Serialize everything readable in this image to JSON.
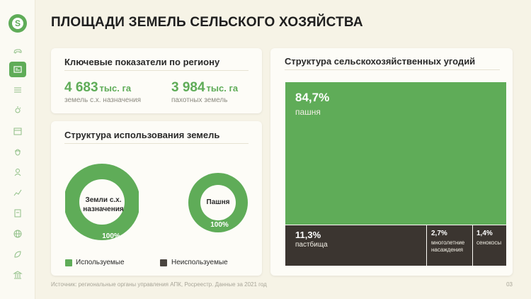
{
  "title": "ПЛОЩАДИ ЗЕМЕЛЬ СЕЛЬСКОГО ХОЗЯЙСТВА",
  "logo_letter": "S",
  "sidebar": {
    "items": [
      {
        "icon": "cow-icon"
      },
      {
        "icon": "field-card-icon",
        "active": true
      },
      {
        "icon": "wheat-field-icon"
      },
      {
        "icon": "weather-icon"
      },
      {
        "icon": "calendar-icon"
      },
      {
        "icon": "bug-icon"
      },
      {
        "icon": "farmer-icon"
      },
      {
        "icon": "trend-chart-icon"
      },
      {
        "icon": "document-icon"
      },
      {
        "icon": "globe-icon"
      },
      {
        "icon": "leaf-icon"
      },
      {
        "icon": "institution-icon"
      }
    ]
  },
  "kpi": {
    "title": "Ключевые показатели по региону",
    "items": [
      {
        "value": "4 683",
        "unit": "тыс. га",
        "label": "земель с.х. назначения"
      },
      {
        "value": "3 984",
        "unit": "тыс. га",
        "label": "пахотных земель"
      }
    ]
  },
  "land_use": {
    "title": "Структура использования земель",
    "donuts": [
      {
        "label_line1": "Земли с.х.",
        "label_line2": "назначения",
        "pct": "100%",
        "used_fraction": 1.0
      },
      {
        "label_line1": "Пашня",
        "label_line2": "",
        "pct": "100%",
        "used_fraction": 1.0
      }
    ],
    "legend": {
      "used": "Используемые",
      "unused": "Неиспользуемые"
    }
  },
  "structure": {
    "title": "Структура сельскохозяйственных угодий",
    "cells": [
      {
        "pct": "84,7%",
        "label": "пашня"
      },
      {
        "pct": "11,3%",
        "label": "пастбища"
      },
      {
        "pct": "2,7%",
        "label_line1": "многолетние",
        "label_line2": "насаждения"
      },
      {
        "pct": "1,4%",
        "label": "сенокосы"
      }
    ]
  },
  "colors": {
    "accent": "#5fac58",
    "dark": "#3b3530"
  },
  "footer": "Источник: региональные органы управления АПК, Росреестр. Данные за 2021 год",
  "page_number": "03"
}
